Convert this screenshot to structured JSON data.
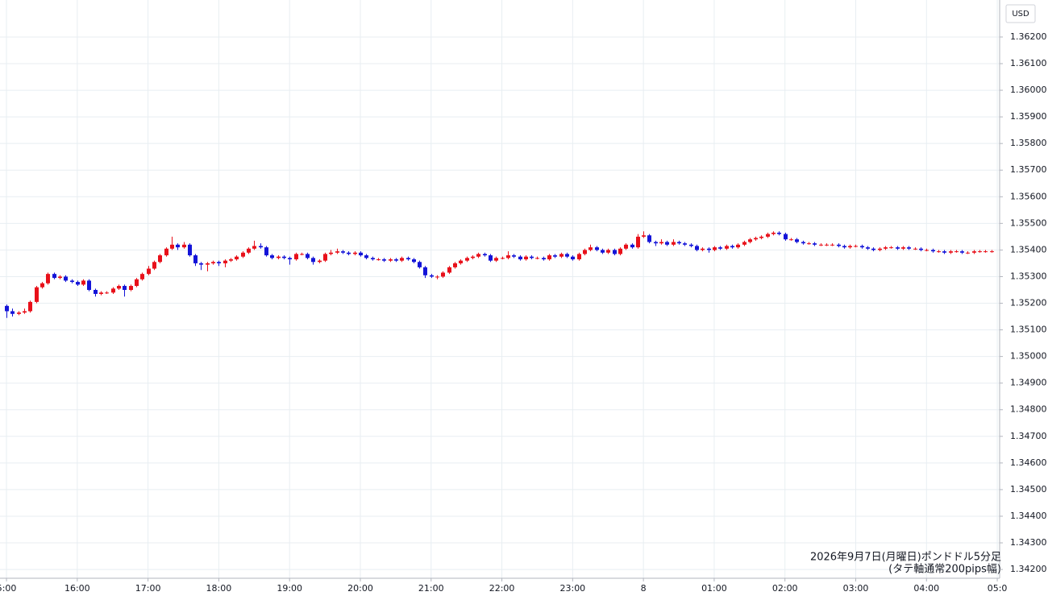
{
  "chart_data": {
    "type": "candlestick",
    "currency": "USD",
    "annotation": [
      "2026年9月7日(月曜日)ポンドドル5分足",
      "(タテ軸通常200pips幅)"
    ],
    "up_color": "#e8101a",
    "down_color": "#1414d8",
    "grid": true,
    "xlim": [
      -1.1,
      168.4
    ],
    "xticks": [
      {
        "value": 0,
        "label": "5:00"
      },
      {
        "value": 12,
        "label": "16:00"
      },
      {
        "value": 24,
        "label": "17:00"
      },
      {
        "value": 36,
        "label": "18:00"
      },
      {
        "value": 48,
        "label": "19:00"
      },
      {
        "value": 60,
        "label": "20:00"
      },
      {
        "value": 72,
        "label": "21:00"
      },
      {
        "value": 84,
        "label": "22:00"
      },
      {
        "value": 96,
        "label": "23:00"
      },
      {
        "value": 108,
        "label": "8"
      },
      {
        "value": 120,
        "label": "01:00"
      },
      {
        "value": 132,
        "label": "02:00"
      },
      {
        "value": 144,
        "label": "03:00"
      },
      {
        "value": 156,
        "label": "04:00"
      },
      {
        "value": 168,
        "label": "05:0"
      }
    ],
    "ylim": [
      1.34167,
      1.36339
    ],
    "yticks": [
      {
        "value": 1.342,
        "label": "1.34200"
      },
      {
        "value": 1.343,
        "label": "1.34300"
      },
      {
        "value": 1.344,
        "label": "1.34400"
      },
      {
        "value": 1.345,
        "label": "1.34500"
      },
      {
        "value": 1.346,
        "label": "1.34600"
      },
      {
        "value": 1.347,
        "label": "1.34700"
      },
      {
        "value": 1.348,
        "label": "1.34800"
      },
      {
        "value": 1.349,
        "label": "1.34900"
      },
      {
        "value": 1.35,
        "label": "1.35000"
      },
      {
        "value": 1.351,
        "label": "1.35100"
      },
      {
        "value": 1.352,
        "label": "1.35200"
      },
      {
        "value": 1.353,
        "label": "1.35300"
      },
      {
        "value": 1.354,
        "label": "1.35400"
      },
      {
        "value": 1.355,
        "label": "1.35500"
      },
      {
        "value": 1.356,
        "label": "1.35600"
      },
      {
        "value": 1.357,
        "label": "1.35700"
      },
      {
        "value": 1.358,
        "label": "1.35800"
      },
      {
        "value": 1.359,
        "label": "1.35900"
      },
      {
        "value": 1.36,
        "label": "1.36000"
      },
      {
        "value": 1.361,
        "label": "1.36100"
      },
      {
        "value": 1.362,
        "label": "1.36200"
      }
    ],
    "ohlc": [
      [
        1.3519,
        1.35195,
        1.35145,
        1.3517
      ],
      [
        1.3517,
        1.3518,
        1.3515,
        1.3516
      ],
      [
        1.3516,
        1.3517,
        1.35155,
        1.35165
      ],
      [
        1.35165,
        1.3518,
        1.3516,
        1.3517
      ],
      [
        1.3517,
        1.3521,
        1.35165,
        1.35205
      ],
      [
        1.35205,
        1.35265,
        1.352,
        1.3526
      ],
      [
        1.3526,
        1.3528,
        1.35255,
        1.35275
      ],
      [
        1.35275,
        1.35315,
        1.3527,
        1.3531
      ],
      [
        1.3531,
        1.35315,
        1.3529,
        1.35295
      ],
      [
        1.35295,
        1.35305,
        1.3529,
        1.353
      ],
      [
        1.353,
        1.35305,
        1.3528,
        1.35285
      ],
      [
        1.35285,
        1.3529,
        1.35275,
        1.3528
      ],
      [
        1.3528,
        1.35285,
        1.35265,
        1.3527
      ],
      [
        1.3527,
        1.3529,
        1.35265,
        1.35285
      ],
      [
        1.35285,
        1.3529,
        1.35245,
        1.3525
      ],
      [
        1.3525,
        1.35255,
        1.35225,
        1.35235
      ],
      [
        1.35235,
        1.35245,
        1.3523,
        1.3524
      ],
      [
        1.3524,
        1.35245,
        1.35235,
        1.3524
      ],
      [
        1.3524,
        1.3526,
        1.35235,
        1.35255
      ],
      [
        1.35255,
        1.3527,
        1.3525,
        1.35265
      ],
      [
        1.35265,
        1.3527,
        1.35225,
        1.3525
      ],
      [
        1.3525,
        1.3527,
        1.35245,
        1.35265
      ],
      [
        1.35265,
        1.35295,
        1.3526,
        1.3529
      ],
      [
        1.3529,
        1.35315,
        1.35285,
        1.3531
      ],
      [
        1.3531,
        1.3534,
        1.35305,
        1.3533
      ],
      [
        1.3533,
        1.3536,
        1.35325,
        1.35355
      ],
      [
        1.35355,
        1.35385,
        1.3535,
        1.3538
      ],
      [
        1.3538,
        1.3541,
        1.35375,
        1.35405
      ],
      [
        1.35405,
        1.3545,
        1.354,
        1.3542
      ],
      [
        1.3542,
        1.35425,
        1.354,
        1.3541
      ],
      [
        1.3541,
        1.3543,
        1.35405,
        1.3542
      ],
      [
        1.3542,
        1.35425,
        1.35375,
        1.3538
      ],
      [
        1.3538,
        1.35385,
        1.3534,
        1.3535
      ],
      [
        1.3535,
        1.35355,
        1.35325,
        1.35345
      ],
      [
        1.35345,
        1.35355,
        1.3532,
        1.3535
      ],
      [
        1.3535,
        1.3536,
        1.35345,
        1.35355
      ],
      [
        1.35355,
        1.3536,
        1.3534,
        1.3535
      ],
      [
        1.3535,
        1.35365,
        1.35335,
        1.3536
      ],
      [
        1.3536,
        1.3537,
        1.35355,
        1.35365
      ],
      [
        1.35365,
        1.3538,
        1.3536,
        1.35375
      ],
      [
        1.35375,
        1.35395,
        1.3537,
        1.3539
      ],
      [
        1.3539,
        1.3541,
        1.35385,
        1.35405
      ],
      [
        1.35405,
        1.35435,
        1.354,
        1.35415
      ],
      [
        1.35415,
        1.35425,
        1.35405,
        1.3541
      ],
      [
        1.3541,
        1.35415,
        1.35375,
        1.3538
      ],
      [
        1.3538,
        1.35385,
        1.35365,
        1.3537
      ],
      [
        1.3537,
        1.3538,
        1.35365,
        1.35375
      ],
      [
        1.35375,
        1.3538,
        1.35365,
        1.3537
      ],
      [
        1.3537,
        1.35375,
        1.35345,
        1.35365
      ],
      [
        1.35365,
        1.3539,
        1.3536,
        1.35385
      ],
      [
        1.35385,
        1.3539,
        1.3538,
        1.35385
      ],
      [
        1.35385,
        1.3539,
        1.35365,
        1.3537
      ],
      [
        1.3537,
        1.35375,
        1.35345,
        1.35355
      ],
      [
        1.35355,
        1.35365,
        1.3535,
        1.3536
      ],
      [
        1.3536,
        1.3539,
        1.35355,
        1.35385
      ],
      [
        1.35385,
        1.354,
        1.3538,
        1.3539
      ],
      [
        1.3539,
        1.35405,
        1.35385,
        1.35395
      ],
      [
        1.35395,
        1.354,
        1.35385,
        1.3539
      ],
      [
        1.3539,
        1.35395,
        1.3538,
        1.35385
      ],
      [
        1.35385,
        1.35395,
        1.3538,
        1.3539
      ],
      [
        1.3539,
        1.35395,
        1.35375,
        1.3538
      ],
      [
        1.3538,
        1.35385,
        1.35365,
        1.3537
      ],
      [
        1.3537,
        1.35375,
        1.3536,
        1.35365
      ],
      [
        1.35365,
        1.3537,
        1.3536,
        1.35365
      ],
      [
        1.35365,
        1.3537,
        1.35355,
        1.3536
      ],
      [
        1.3536,
        1.3537,
        1.35355,
        1.35365
      ],
      [
        1.35365,
        1.3537,
        1.35355,
        1.3536
      ],
      [
        1.3536,
        1.35375,
        1.35355,
        1.3537
      ],
      [
        1.3537,
        1.35375,
        1.3536,
        1.35365
      ],
      [
        1.35365,
        1.3537,
        1.3535,
        1.35355
      ],
      [
        1.35355,
        1.3536,
        1.3533,
        1.35335
      ],
      [
        1.35335,
        1.3534,
        1.35295,
        1.35305
      ],
      [
        1.35305,
        1.3531,
        1.35295,
        1.353
      ],
      [
        1.353,
        1.35305,
        1.3529,
        1.353
      ],
      [
        1.353,
        1.3532,
        1.35295,
        1.35315
      ],
      [
        1.35315,
        1.3534,
        1.3531,
        1.35335
      ],
      [
        1.35335,
        1.35355,
        1.3533,
        1.3535
      ],
      [
        1.3535,
        1.35365,
        1.35345,
        1.3536
      ],
      [
        1.3536,
        1.35375,
        1.35355,
        1.3537
      ],
      [
        1.3537,
        1.3538,
        1.35365,
        1.35375
      ],
      [
        1.35375,
        1.3539,
        1.3537,
        1.35385
      ],
      [
        1.35385,
        1.3539,
        1.35375,
        1.3538
      ],
      [
        1.3538,
        1.35385,
        1.35355,
        1.3536
      ],
      [
        1.3536,
        1.35375,
        1.35355,
        1.3537
      ],
      [
        1.3537,
        1.35375,
        1.35365,
        1.3537
      ],
      [
        1.3537,
        1.35395,
        1.35365,
        1.3538
      ],
      [
        1.3538,
        1.35385,
        1.3537,
        1.35375
      ],
      [
        1.35375,
        1.3538,
        1.3536,
        1.35365
      ],
      [
        1.35365,
        1.3538,
        1.3536,
        1.35375
      ],
      [
        1.35375,
        1.3538,
        1.35365,
        1.3537
      ],
      [
        1.3537,
        1.35375,
        1.35365,
        1.3537
      ],
      [
        1.3537,
        1.35375,
        1.3536,
        1.35365
      ],
      [
        1.35365,
        1.35385,
        1.3536,
        1.3538
      ],
      [
        1.3538,
        1.35385,
        1.3537,
        1.35375
      ],
      [
        1.35375,
        1.3539,
        1.3537,
        1.35385
      ],
      [
        1.35385,
        1.3539,
        1.3537,
        1.35375
      ],
      [
        1.35375,
        1.3538,
        1.3536,
        1.35365
      ],
      [
        1.35365,
        1.3539,
        1.3536,
        1.35385
      ],
      [
        1.35385,
        1.35405,
        1.3538,
        1.354
      ],
      [
        1.354,
        1.3542,
        1.35395,
        1.3541
      ],
      [
        1.3541,
        1.35415,
        1.35395,
        1.354
      ],
      [
        1.354,
        1.35405,
        1.35385,
        1.3539
      ],
      [
        1.3539,
        1.35405,
        1.35385,
        1.354
      ],
      [
        1.354,
        1.35405,
        1.3538,
        1.35385
      ],
      [
        1.35385,
        1.3541,
        1.3538,
        1.35405
      ],
      [
        1.35405,
        1.35425,
        1.354,
        1.3542
      ],
      [
        1.3542,
        1.35425,
        1.35405,
        1.3541
      ],
      [
        1.3541,
        1.3546,
        1.35405,
        1.3545
      ],
      [
        1.3545,
        1.3547,
        1.35445,
        1.35455
      ],
      [
        1.35455,
        1.3546,
        1.35425,
        1.3543
      ],
      [
        1.3543,
        1.35435,
        1.35415,
        1.35425
      ],
      [
        1.35425,
        1.3544,
        1.3542,
        1.3543
      ],
      [
        1.3543,
        1.35435,
        1.35415,
        1.3542
      ],
      [
        1.3542,
        1.3544,
        1.35415,
        1.3543
      ],
      [
        1.3543,
        1.35435,
        1.3542,
        1.35425
      ],
      [
        1.35425,
        1.3543,
        1.35415,
        1.3542
      ],
      [
        1.3542,
        1.35425,
        1.3541,
        1.35415
      ],
      [
        1.35415,
        1.3542,
        1.35395,
        1.354
      ],
      [
        1.354,
        1.3541,
        1.35395,
        1.35405
      ],
      [
        1.35405,
        1.3541,
        1.3539,
        1.354
      ],
      [
        1.354,
        1.35415,
        1.35395,
        1.3541
      ],
      [
        1.3541,
        1.35415,
        1.354,
        1.35405
      ],
      [
        1.35405,
        1.3542,
        1.354,
        1.35415
      ],
      [
        1.35415,
        1.3542,
        1.35405,
        1.3541
      ],
      [
        1.3541,
        1.35425,
        1.35405,
        1.3542
      ],
      [
        1.3542,
        1.35435,
        1.35415,
        1.3543
      ],
      [
        1.3543,
        1.35445,
        1.35425,
        1.3544
      ],
      [
        1.3544,
        1.3545,
        1.35435,
        1.35445
      ],
      [
        1.35445,
        1.35455,
        1.3544,
        1.3545
      ],
      [
        1.3545,
        1.35465,
        1.35445,
        1.3546
      ],
      [
        1.3546,
        1.3547,
        1.35455,
        1.35465
      ],
      [
        1.35465,
        1.3547,
        1.35455,
        1.3546
      ],
      [
        1.3546,
        1.35465,
        1.35435,
        1.3544
      ],
      [
        1.3544,
        1.35445,
        1.35435,
        1.3544
      ],
      [
        1.3544,
        1.35445,
        1.35425,
        1.3543
      ],
      [
        1.3543,
        1.35435,
        1.3542,
        1.35425
      ],
      [
        1.35425,
        1.3543,
        1.3542,
        1.35425
      ],
      [
        1.35425,
        1.3543,
        1.35415,
        1.3542
      ],
      [
        1.3542,
        1.35425,
        1.35415,
        1.3542
      ],
      [
        1.3542,
        1.35425,
        1.35415,
        1.3542
      ],
      [
        1.3542,
        1.35425,
        1.35415,
        1.3542
      ],
      [
        1.3542,
        1.35425,
        1.3541,
        1.35415
      ],
      [
        1.35415,
        1.3542,
        1.35405,
        1.3541
      ],
      [
        1.3541,
        1.3542,
        1.35405,
        1.35415
      ],
      [
        1.35415,
        1.3542,
        1.3541,
        1.35415
      ],
      [
        1.35415,
        1.3542,
        1.35405,
        1.3541
      ],
      [
        1.3541,
        1.35415,
        1.354,
        1.35405
      ],
      [
        1.35405,
        1.3541,
        1.35395,
        1.354
      ],
      [
        1.354,
        1.3541,
        1.35395,
        1.35405
      ],
      [
        1.35405,
        1.35415,
        1.354,
        1.3541
      ],
      [
        1.3541,
        1.35415,
        1.35405,
        1.3541
      ],
      [
        1.3541,
        1.35415,
        1.354,
        1.35405
      ],
      [
        1.35405,
        1.35415,
        1.354,
        1.3541
      ],
      [
        1.3541,
        1.35415,
        1.354,
        1.35405
      ],
      [
        1.35405,
        1.3541,
        1.354,
        1.35405
      ],
      [
        1.35405,
        1.3541,
        1.35395,
        1.354
      ],
      [
        1.354,
        1.35405,
        1.35395,
        1.354
      ],
      [
        1.354,
        1.35405,
        1.3539,
        1.35395
      ],
      [
        1.35395,
        1.354,
        1.3539,
        1.35395
      ],
      [
        1.35395,
        1.354,
        1.35385,
        1.3539
      ],
      [
        1.3539,
        1.354,
        1.35385,
        1.35395
      ],
      [
        1.35395,
        1.354,
        1.3539,
        1.35395
      ],
      [
        1.35395,
        1.354,
        1.35385,
        1.3539
      ],
      [
        1.3539,
        1.35395,
        1.35385,
        1.3539
      ],
      [
        1.3539,
        1.354,
        1.35385,
        1.35395
      ],
      [
        1.35395,
        1.354,
        1.3539,
        1.35395
      ],
      [
        1.35395,
        1.354,
        1.3539,
        1.35395
      ],
      [
        1.35395,
        1.354,
        1.3539,
        1.35395
      ]
    ]
  }
}
